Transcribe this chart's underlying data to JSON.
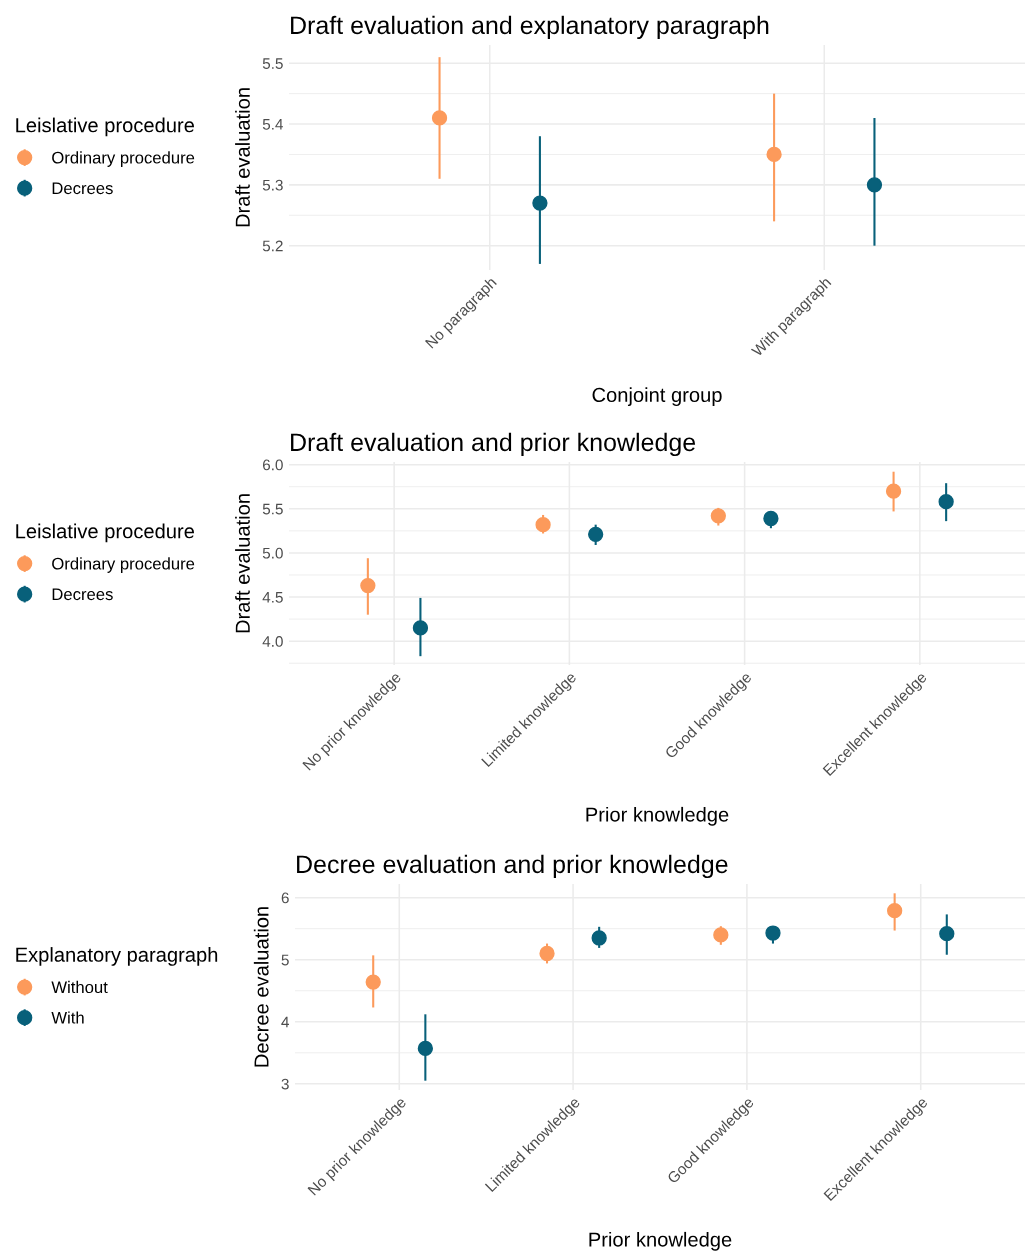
{
  "chart_data": [
    {
      "type": "scatter",
      "title": "Draft evaluation and explanatory paragraph",
      "xlabel": "Conjoint group",
      "ylabel": "Draft evaluation",
      "legend_title": "Leislative procedure",
      "legend": "left",
      "grid": true,
      "marker": "circle",
      "categories": [
        "No paragraph",
        "With paragraph"
      ],
      "series": [
        {
          "name": "Ordinary procedure",
          "color": "#fc9a5b",
          "values": [
            5.41,
            5.35
          ],
          "errors": [
            [
              5.31,
              5.51
            ],
            [
              5.24,
              5.45
            ]
          ]
        },
        {
          "name": "Decrees",
          "color": "#08607a",
          "values": [
            5.27,
            5.3
          ],
          "errors": [
            [
              5.17,
              5.38
            ],
            [
              5.2,
              5.41
            ]
          ]
        }
      ],
      "ylim": [
        5.16,
        5.53
      ],
      "yticks": [
        5.2,
        5.3,
        5.4,
        5.5
      ]
    },
    {
      "type": "scatter",
      "title": "Draft evaluation and prior knowledge",
      "xlabel": "Prior knowledge",
      "ylabel": "Draft evaluation",
      "legend_title": "Leislative procedure",
      "legend": "left",
      "grid": true,
      "marker": "circle",
      "categories": [
        "No prior knowledge",
        "Limited knowledge",
        "Good knowledge",
        "Excellent knowledge"
      ],
      "series": [
        {
          "name": "Ordinary procedure",
          "color": "#fc9a5b",
          "values": [
            4.63,
            5.32,
            5.42,
            5.7
          ],
          "errors": [
            [
              4.3,
              4.94
            ],
            [
              5.22,
              5.43
            ],
            [
              5.31,
              5.51
            ],
            [
              5.47,
              5.92
            ]
          ]
        },
        {
          "name": "Decrees",
          "color": "#08607a",
          "values": [
            4.15,
            5.21,
            5.39,
            5.58
          ],
          "errors": [
            [
              3.83,
              4.49
            ],
            [
              5.09,
              5.32
            ],
            [
              5.28,
              5.47
            ],
            [
              5.36,
              5.79
            ]
          ]
        }
      ],
      "ylim": [
        3.73,
        6.03
      ],
      "yticks": [
        {
          "value": 4,
          "label": "4.0"
        },
        4.5,
        {
          "value": 5,
          "label": "5.0"
        },
        5.5,
        {
          "value": 6,
          "label": "6.0"
        }
      ]
    },
    {
      "type": "scatter",
      "title": "Decree evaluation and prior knowledge",
      "xlabel": "Prior knowledge",
      "ylabel": "Decree evaluation",
      "legend_title": "Explanatory paragraph",
      "legend": "left",
      "grid": true,
      "marker": "circle",
      "categories": [
        "No prior knowledge",
        "Limited knowledge",
        "Good knowledge",
        "Excellent knowledge"
      ],
      "series": [
        {
          "name": "Without",
          "color": "#fc9a5b",
          "values": [
            4.64,
            5.1,
            5.4,
            5.79
          ],
          "errors": [
            [
              4.23,
              5.07
            ],
            [
              4.94,
              5.26
            ],
            [
              5.24,
              5.54
            ],
            [
              5.47,
              6.07
            ]
          ]
        },
        {
          "name": "With",
          "color": "#08607a",
          "values": [
            3.57,
            5.35,
            5.43,
            5.42
          ],
          "errors": [
            [
              3.05,
              4.12
            ],
            [
              5.19,
              5.53
            ],
            [
              5.26,
              5.53
            ],
            [
              5.08,
              5.73
            ]
          ]
        }
      ],
      "ylim": [
        2.9,
        6.22
      ],
      "yticks": [
        3,
        4,
        5,
        6
      ]
    }
  ]
}
